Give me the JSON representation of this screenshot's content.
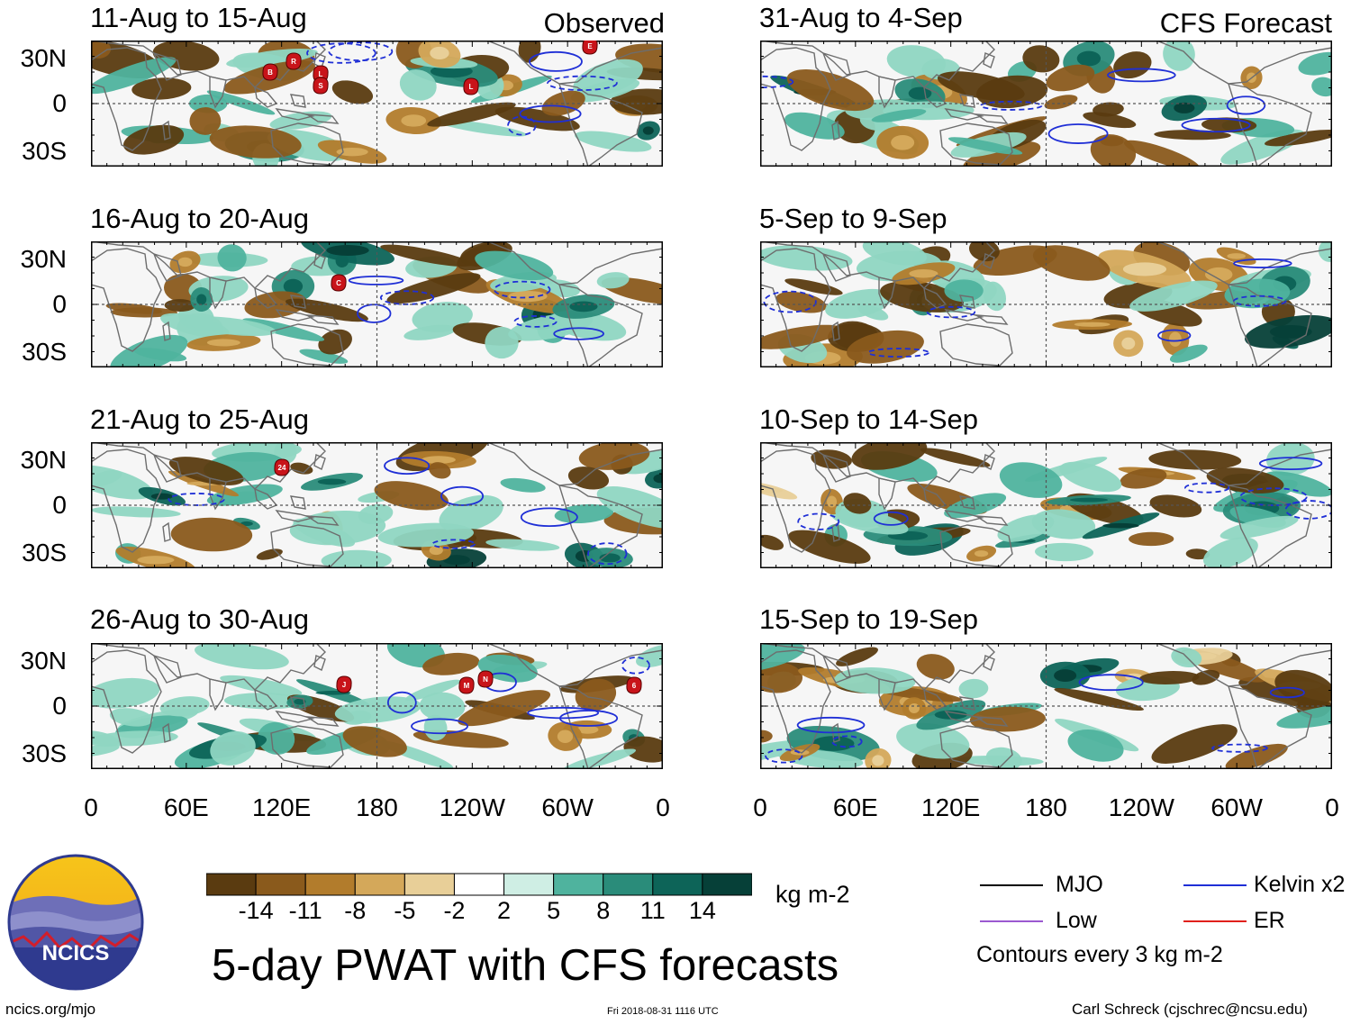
{
  "panels_left_header": "Observed",
  "panels_right_header": "CFS Forecast",
  "panels": [
    {
      "title": "11-Aug to 15-Aug",
      "group": "observed"
    },
    {
      "title": "16-Aug to 20-Aug",
      "group": "observed"
    },
    {
      "title": "21-Aug to 25-Aug",
      "group": "observed"
    },
    {
      "title": "26-Aug to 30-Aug",
      "group": "observed"
    },
    {
      "title": "31-Aug to 4-Sep",
      "group": "forecast"
    },
    {
      "title": "5-Sep to 9-Sep",
      "group": "forecast"
    },
    {
      "title": "10-Sep to 14-Sep",
      "group": "forecast"
    },
    {
      "title": "15-Sep to 19-Sep",
      "group": "forecast"
    }
  ],
  "lat_labels": [
    "30N",
    "0",
    "30S"
  ],
  "lon_labels": [
    "0",
    "60E",
    "120E",
    "180",
    "120W",
    "60W",
    "0"
  ],
  "storm_markers": [
    {
      "panel": 0,
      "label": "B"
    },
    {
      "panel": 0,
      "label": "R"
    },
    {
      "panel": 0,
      "label": "L"
    },
    {
      "panel": 0,
      "label": "S"
    },
    {
      "panel": 0,
      "label": "L"
    },
    {
      "panel": 0,
      "label": "E"
    },
    {
      "panel": 1,
      "label": "C"
    },
    {
      "panel": 2,
      "label": "24"
    },
    {
      "panel": 3,
      "label": "J"
    },
    {
      "panel": 3,
      "label": "M"
    },
    {
      "panel": 3,
      "label": "N"
    },
    {
      "panel": 3,
      "label": "6"
    }
  ],
  "colorbar": {
    "ticks": [
      "-14",
      "-11",
      "-8",
      "-5",
      "-2",
      "2",
      "5",
      "8",
      "11",
      "14"
    ],
    "colors": [
      "#5a3b10",
      "#8a5a1c",
      "#b27c2c",
      "#d4a85a",
      "#e8cf98",
      "#f5ebcc",
      "#ffffff",
      "#cfeee4",
      "#8fd6c2",
      "#4fb39e",
      "#2a8c7a",
      "#0d6458",
      "#064038"
    ],
    "units": "kg m-2"
  },
  "legend": {
    "items": [
      {
        "label": "MJO",
        "color": "#000000"
      },
      {
        "label": "Kelvin x2",
        "color": "#1f2fd6"
      },
      {
        "label": "Low",
        "color": "#9b59d0"
      },
      {
        "label": "ER",
        "color": "#e0201c"
      }
    ],
    "note": "Contours every 3 kg m-2"
  },
  "logo_text": "NCICS",
  "main_title": "5-day PWAT with CFS forecasts",
  "footer": {
    "left": "ncics.org/mjo",
    "center": "Fri 2018-08-31 1116 UTC",
    "right": "Carl Schreck (cjschrec@ncsu.edu)"
  }
}
